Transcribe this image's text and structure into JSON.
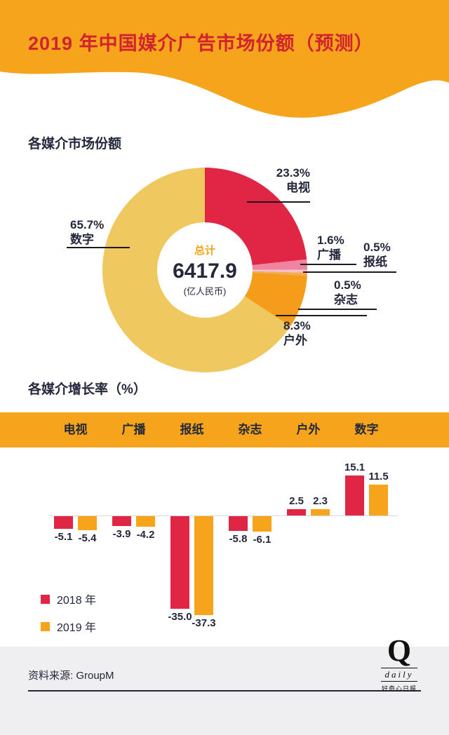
{
  "header": {
    "title": "2019 年中国媒介广告市场份额（预测）",
    "banner_color": "#F5A41C",
    "title_color": "#D1232E"
  },
  "chart_data": [
    {
      "type": "pie",
      "donut": true,
      "title": "各媒介市场份额",
      "labels": [
        "电视",
        "广播",
        "报纸",
        "杂志",
        "户外",
        "数字"
      ],
      "values": [
        23.3,
        1.6,
        0.5,
        0.5,
        8.3,
        65.7
      ],
      "value_labels": [
        "23.3%",
        "1.6%",
        "0.5%",
        "0.5%",
        "8.3%",
        "65.7%"
      ],
      "colors": [
        "#E02545",
        "#F0839F",
        "#F7C0CD",
        "#F2AE4E",
        "#F59C1A",
        "#EFC95F"
      ],
      "start_angle_deg": 0,
      "direction": "clockwise",
      "center_total": {
        "label": "总计",
        "value": "6417.9",
        "unit": "(亿人民币)"
      }
    },
    {
      "type": "bar",
      "title": "各媒介增长率（%）",
      "categories": [
        "电视",
        "广播",
        "报纸",
        "杂志",
        "户外",
        "数字"
      ],
      "series": [
        {
          "name": "2018 年",
          "color": "#E02545",
          "values": [
            -5.1,
            -3.9,
            -35.0,
            -5.8,
            2.5,
            15.1
          ]
        },
        {
          "name": "2019 年",
          "color": "#F5A41C",
          "values": [
            -5.4,
            -4.2,
            -37.3,
            -6.1,
            2.3,
            11.5
          ]
        }
      ],
      "value_labels": true,
      "ylim": [
        -40,
        18
      ],
      "grid": false,
      "legend_position": "bottom-left"
    }
  ],
  "footer": {
    "source": "资料来源: GroupM",
    "logo": {
      "q": "Q",
      "daily": "daily",
      "name": "好奇心日报"
    }
  }
}
